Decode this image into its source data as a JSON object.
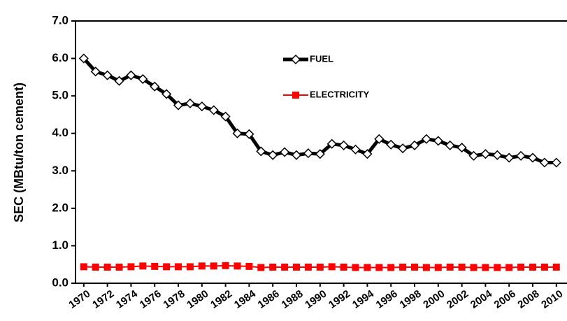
{
  "chart_data": {
    "type": "line",
    "y_label": "SEC (MBtu/ton cement)",
    "x": [
      1970,
      1971,
      1972,
      1973,
      1974,
      1975,
      1976,
      1977,
      1978,
      1979,
      1980,
      1981,
      1982,
      1983,
      1984,
      1985,
      1986,
      1987,
      1988,
      1989,
      1990,
      1991,
      1992,
      1993,
      1994,
      1995,
      1996,
      1997,
      1998,
      1999,
      2000,
      2001,
      2002,
      2003,
      2004,
      2005,
      2006,
      2007,
      2008,
      2009,
      2010
    ],
    "series": [
      {
        "name": "FUEL",
        "color": "#000000",
        "marker": "diamond",
        "values": [
          6.0,
          5.65,
          5.55,
          5.4,
          5.55,
          5.45,
          5.25,
          5.05,
          4.75,
          4.8,
          4.72,
          4.62,
          4.45,
          4.0,
          3.98,
          3.52,
          3.42,
          3.5,
          3.42,
          3.47,
          3.45,
          3.72,
          3.68,
          3.57,
          3.45,
          3.85,
          3.7,
          3.6,
          3.68,
          3.85,
          3.8,
          3.68,
          3.62,
          3.4,
          3.45,
          3.42,
          3.35,
          3.4,
          3.35,
          3.22,
          3.22
        ]
      },
      {
        "name": "ELECTRICITY",
        "color": "#ff0000",
        "marker": "square",
        "values": [
          0.44,
          0.43,
          0.43,
          0.43,
          0.44,
          0.46,
          0.45,
          0.44,
          0.44,
          0.44,
          0.46,
          0.46,
          0.47,
          0.46,
          0.45,
          0.42,
          0.43,
          0.43,
          0.43,
          0.43,
          0.43,
          0.44,
          0.43,
          0.42,
          0.42,
          0.42,
          0.42,
          0.43,
          0.43,
          0.42,
          0.42,
          0.43,
          0.43,
          0.42,
          0.42,
          0.42,
          0.42,
          0.43,
          0.43,
          0.43,
          0.43
        ]
      }
    ],
    "xlim": [
      1969.3,
      2010.9
    ],
    "xticks": [
      1970,
      1972,
      1974,
      1976,
      1978,
      1980,
      1982,
      1984,
      1986,
      1988,
      1990,
      1992,
      1994,
      1996,
      1998,
      2000,
      2002,
      2004,
      2006,
      2008,
      2010
    ],
    "ylim": [
      0,
      7
    ],
    "yticks": [
      {
        "value": 0,
        "label": "0.0"
      },
      {
        "value": 1,
        "label": "1.0"
      },
      {
        "value": 2,
        "label": "2.0"
      },
      {
        "value": 3,
        "label": "3.0"
      },
      {
        "value": 4,
        "label": "4.0"
      },
      {
        "value": 5,
        "label": "5.0"
      },
      {
        "value": 6,
        "label": "6.0"
      },
      {
        "value": 7,
        "label": "7.0"
      }
    ],
    "grid": false
  }
}
